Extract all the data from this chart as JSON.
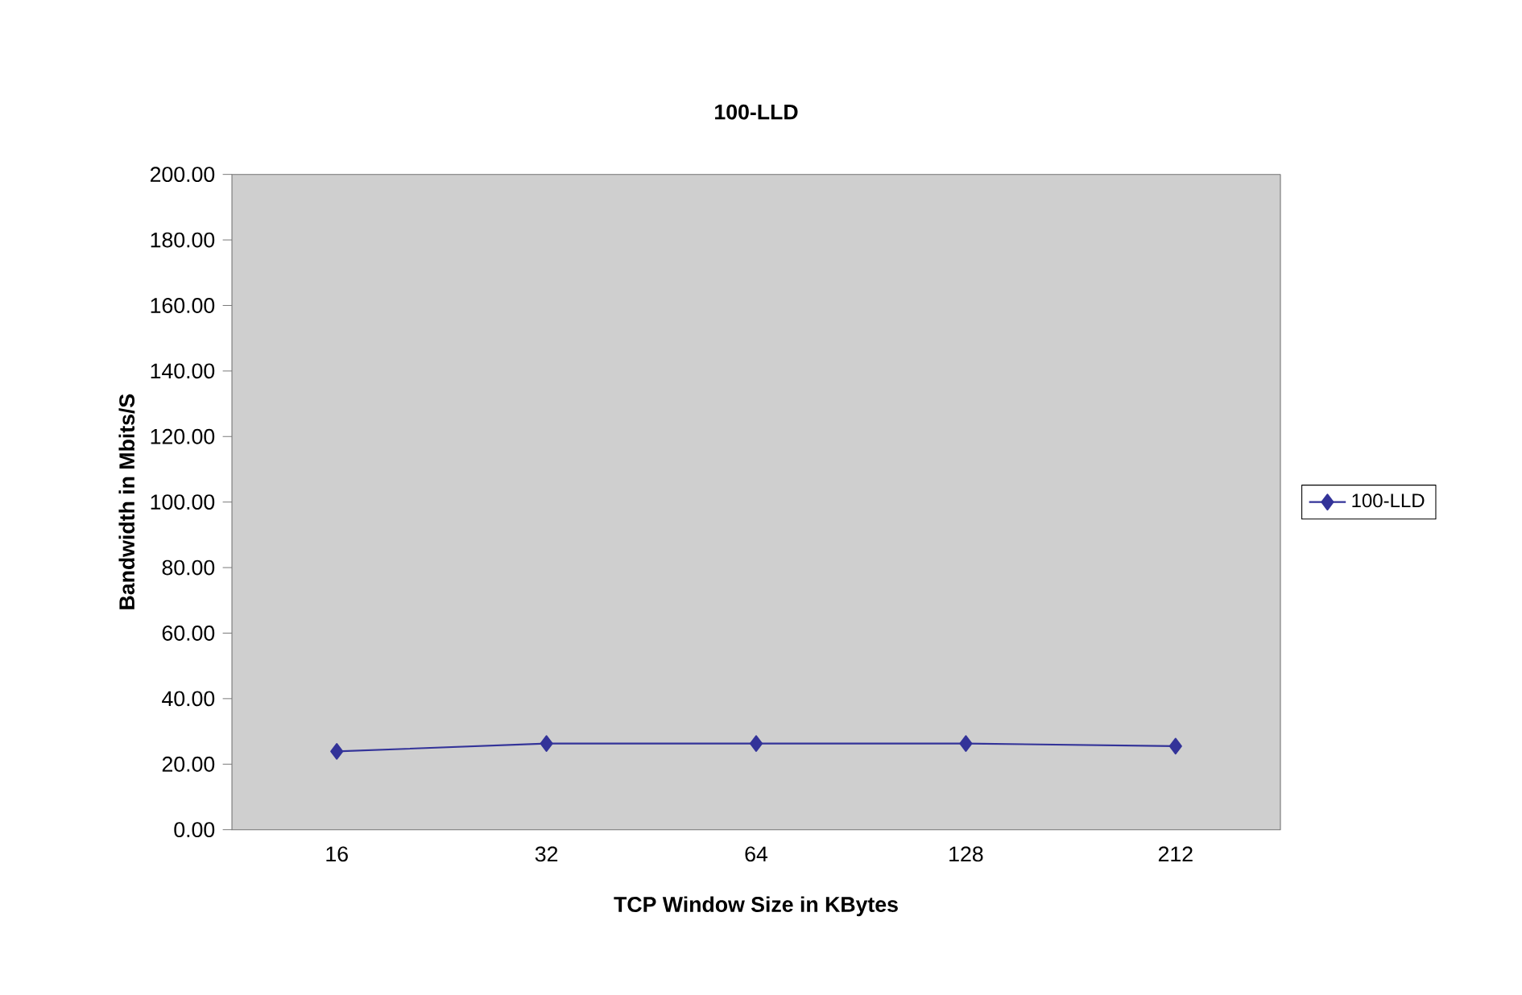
{
  "chart_data": {
    "type": "line",
    "title": "100-LLD",
    "xlabel": "TCP Window Size in KBytes",
    "ylabel": "Bandwidth in Mbits/S",
    "categories": [
      "16",
      "32",
      "64",
      "128",
      "212"
    ],
    "series": [
      {
        "name": "100-LLD",
        "color": "#333399",
        "values": [
          23.9,
          26.3,
          26.3,
          26.3,
          25.5
        ]
      }
    ],
    "ylim": [
      0,
      200
    ],
    "yticks": [
      {
        "value": 0,
        "label": "0.00"
      },
      {
        "value": 20,
        "label": "20.00"
      },
      {
        "value": 40,
        "label": "40.00"
      },
      {
        "value": 60,
        "label": "60.00"
      },
      {
        "value": 80,
        "label": "80.00"
      },
      {
        "value": 100,
        "label": "100.00"
      },
      {
        "value": 120,
        "label": "120.00"
      },
      {
        "value": 140,
        "label": "140.00"
      },
      {
        "value": 160,
        "label": "160.00"
      },
      {
        "value": 180,
        "label": "180.00"
      },
      {
        "value": 200,
        "label": "200.00"
      }
    ],
    "grid": false,
    "legend": "right",
    "marker": "diamond",
    "line_style": "solid"
  }
}
